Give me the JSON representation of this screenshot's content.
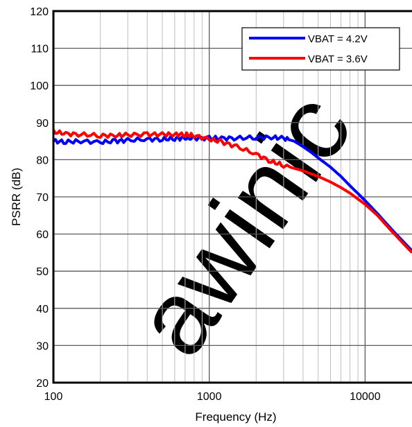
{
  "chart_data": {
    "type": "line",
    "title": "",
    "xlabel": "Frequency (Hz)",
    "ylabel": "PSRR (dB)",
    "xscale": "log",
    "xlim": [
      100,
      20000
    ],
    "ylim": [
      20,
      120
    ],
    "yticks": [
      "20",
      "30",
      "40",
      "50",
      "60",
      "70",
      "80",
      "90",
      "100",
      "110",
      "120"
    ],
    "xticks": [
      {
        "value": 100,
        "label": "100"
      },
      {
        "value": 1000,
        "label": "1000"
      },
      {
        "value": 10000,
        "label": "10000"
      }
    ],
    "grid": true,
    "legend_position": "top-right",
    "watermark": "awinic",
    "watermark_color": "#f7c8c8",
    "series": [
      {
        "name": "VBAT = 4.2V",
        "color": "#0000ff",
        "points": [
          [
            100,
            85
          ],
          [
            120,
            84.8
          ],
          [
            150,
            85
          ],
          [
            200,
            84.7
          ],
          [
            250,
            85
          ],
          [
            300,
            85.2
          ],
          [
            400,
            85.5
          ],
          [
            500,
            85.5
          ],
          [
            600,
            85.7
          ],
          [
            700,
            85.8
          ],
          [
            800,
            85.8
          ],
          [
            1000,
            85.8
          ],
          [
            1200,
            85.8
          ],
          [
            1500,
            85.8
          ],
          [
            2000,
            86
          ],
          [
            2500,
            86
          ],
          [
            3000,
            85.8
          ],
          [
            3500,
            85
          ],
          [
            4000,
            83.5
          ],
          [
            4500,
            82
          ],
          [
            5000,
            80.5
          ],
          [
            6000,
            78
          ],
          [
            7000,
            75.5
          ],
          [
            8000,
            73
          ],
          [
            10000,
            69
          ],
          [
            12000,
            65.5
          ],
          [
            15000,
            61
          ],
          [
            20000,
            55.5
          ]
        ]
      },
      {
        "name": "VBAT = 3.6V",
        "color": "#ff0000",
        "points": [
          [
            100,
            87.5
          ],
          [
            120,
            87
          ],
          [
            150,
            86.8
          ],
          [
            200,
            86.5
          ],
          [
            250,
            86.5
          ],
          [
            300,
            86.7
          ],
          [
            400,
            86.8
          ],
          [
            500,
            86.8
          ],
          [
            600,
            86.8
          ],
          [
            700,
            86.8
          ],
          [
            800,
            86.5
          ],
          [
            1000,
            85.5
          ],
          [
            1200,
            84.8
          ],
          [
            1500,
            83.5
          ],
          [
            2000,
            81.5
          ],
          [
            2500,
            79.5
          ],
          [
            3000,
            78.5
          ],
          [
            4000,
            77
          ],
          [
            5000,
            75.5
          ],
          [
            6000,
            74
          ],
          [
            7000,
            72.5
          ],
          [
            8000,
            71
          ],
          [
            10000,
            68
          ],
          [
            12000,
            65
          ],
          [
            15000,
            60.5
          ],
          [
            20000,
            55
          ]
        ]
      }
    ]
  }
}
